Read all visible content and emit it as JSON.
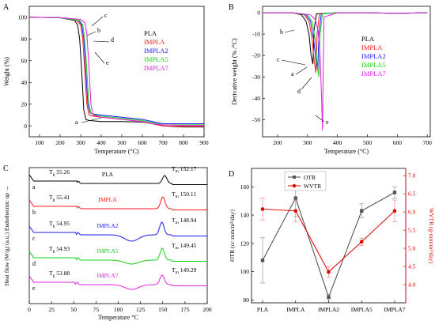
{
  "colors": {
    "PLA": "#000000",
    "IMPLA": "#ff1a1a",
    "IMPLA2": "#1a1aff",
    "IMPLA5": "#1ad01a",
    "IMPLA7": "#e020e0",
    "axis": "#000000",
    "wvtr": "#e00000",
    "otr": "#444444"
  },
  "chart_data": [
    {
      "panel": "A",
      "type": "line",
      "xlabel": "Temperature (°C)",
      "ylabel": "Weight (%)",
      "xlim": [
        50,
        900
      ],
      "ylim": [
        -10,
        110
      ],
      "xticks": [
        100,
        200,
        300,
        400,
        500,
        600,
        700,
        800,
        900
      ],
      "yticks": [
        0,
        20,
        40,
        60,
        80,
        100
      ],
      "legend": [
        "PLA",
        "IMPLA",
        "IMPLA2",
        "IMPLA5",
        "IMPLA7"
      ],
      "legend_position": "center-right",
      "annotations": [
        "a",
        "b",
        "c",
        "d",
        "e"
      ],
      "series": [
        {
          "name": "PLA",
          "x": [
            50,
            200,
            270,
            285,
            295,
            305,
            315,
            325,
            340,
            400,
            500,
            600,
            650,
            700,
            800,
            900
          ],
          "y": [
            100,
            99.5,
            97,
            93,
            80,
            50,
            15,
            6,
            5,
            4,
            4,
            3.5,
            2,
            0,
            -1,
            -1
          ]
        },
        {
          "name": "IMPLA",
          "x": [
            50,
            200,
            280,
            300,
            310,
            320,
            330,
            340,
            360,
            400,
            500,
            600,
            650,
            700,
            800,
            900
          ],
          "y": [
            100,
            99.5,
            97,
            93,
            80,
            50,
            20,
            10,
            9,
            8,
            6,
            4,
            2,
            0,
            -0.5,
            -0.5
          ]
        },
        {
          "name": "IMPLA2",
          "x": [
            50,
            200,
            290,
            305,
            315,
            325,
            335,
            345,
            360,
            400,
            500,
            600,
            650,
            700,
            800,
            900
          ],
          "y": [
            100,
            99.5,
            97,
            93,
            80,
            50,
            20,
            12,
            11,
            10,
            8,
            6,
            4,
            2,
            2,
            2
          ]
        },
        {
          "name": "IMPLA5",
          "x": [
            50,
            200,
            295,
            310,
            320,
            330,
            340,
            350,
            370,
            400,
            500,
            600,
            650,
            700,
            800,
            900
          ],
          "y": [
            100,
            99.5,
            97,
            93,
            80,
            50,
            20,
            12,
            10,
            9,
            7,
            5,
            3,
            1,
            1,
            1
          ]
        },
        {
          "name": "IMPLA7",
          "x": [
            50,
            200,
            300,
            320,
            330,
            340,
            350,
            360,
            380,
            400,
            500,
            600,
            650,
            700,
            800,
            900
          ],
          "y": [
            100,
            99.5,
            98,
            95,
            85,
            55,
            20,
            10,
            9,
            8,
            6,
            4,
            2,
            1,
            0.5,
            0.5
          ]
        }
      ]
    },
    {
      "panel": "B",
      "type": "line",
      "xlabel": "Temperature (°C)",
      "ylabel": "Derivative weight (% /°C)",
      "xlim": [
        150,
        710
      ],
      "ylim": [
        -58,
        3
      ],
      "xticks": [
        200,
        300,
        400,
        500,
        600,
        700
      ],
      "yticks": [
        0,
        -10,
        -20,
        -30,
        -40,
        -50
      ],
      "legend": [
        "PLA",
        "IMPLA",
        "IMPLA2",
        "IMPLA5",
        "IMPLA7"
      ],
      "legend_position": "center-right",
      "annotations": [
        "a",
        "b",
        "c",
        "d",
        "e"
      ],
      "series": [
        {
          "name": "PLA",
          "x": [
            150,
            250,
            280,
            295,
            305,
            312,
            318,
            322,
            330,
            400,
            500,
            600,
            700
          ],
          "y": [
            0,
            0,
            -1,
            -4,
            -10,
            -20,
            -24,
            -8,
            -0.5,
            0,
            0,
            -0.3,
            0
          ]
        },
        {
          "name": "IMPLA",
          "x": [
            150,
            250,
            290,
            305,
            315,
            322,
            328,
            332,
            340,
            400,
            500,
            600,
            700
          ],
          "y": [
            0,
            0,
            -1,
            -4,
            -12,
            -22,
            -28,
            -10,
            -0.5,
            0,
            0,
            -0.3,
            0
          ]
        },
        {
          "name": "IMPLA2",
          "x": [
            150,
            250,
            295,
            310,
            320,
            328,
            334,
            338,
            346,
            400,
            500,
            600,
            700
          ],
          "y": [
            0,
            0,
            -1,
            -4,
            -12,
            -22,
            -27,
            -10,
            -0.5,
            0,
            0,
            -0.3,
            0
          ]
        },
        {
          "name": "IMPLA5",
          "x": [
            150,
            250,
            300,
            315,
            325,
            332,
            338,
            342,
            350,
            400,
            500,
            600,
            700
          ],
          "y": [
            0,
            0,
            -1,
            -4,
            -12,
            -24,
            -30,
            -10,
            -0.5,
            0,
            0,
            -0.3,
            0
          ]
        },
        {
          "name": "IMPLA7",
          "x": [
            150,
            250,
            310,
            325,
            335,
            342,
            347,
            350,
            355,
            400,
            500,
            600,
            700
          ],
          "y": [
            0,
            0,
            -1,
            -3,
            -8,
            -20,
            -40,
            -55,
            -2,
            0,
            0,
            -0.3,
            0
          ]
        }
      ]
    },
    {
      "panel": "C",
      "type": "line",
      "xlabel": "Temperature °C",
      "ylabel": "Heat flow (W/g) (a.u.) Endothermic up →",
      "xlim": [
        0,
        200
      ],
      "xticks": [
        0,
        25,
        50,
        75,
        100,
        125,
        150,
        175,
        200
      ],
      "legend": [
        "PLA",
        "IMPLA",
        "IMPLA2",
        "IMPLA5",
        "IMPLA7"
      ],
      "annotations": [
        {
          "curve": "a",
          "tg_prefix": "T",
          "tg_sub": "g",
          "tg_value": "55.26",
          "tm_prefix": "T",
          "tm_sub": "m",
          "tm_value": "152.17"
        },
        {
          "curve": "b",
          "tg_prefix": "T",
          "tg_sub": "g",
          "tg_value": "55.41",
          "tm_prefix": "T",
          "tm_sub": "m",
          "tm_value": "150.11"
        },
        {
          "curve": "c",
          "tg_prefix": "T",
          "tg_sub": "g",
          "tg_value": "54.95",
          "tm_prefix": "T",
          "tm_sub": "m",
          "tm_value": "148.94"
        },
        {
          "curve": "d",
          "tg_prefix": "T",
          "tg_sub": "g",
          "tg_value": "54.93",
          "tm_prefix": "T",
          "tm_sub": "m",
          "tm_value": "149.45"
        },
        {
          "curve": "e",
          "tg_prefix": "T",
          "tg_sub": "g",
          "tg_value": "53.88",
          "tm_prefix": "T",
          "tm_sub": "m",
          "tm_value": "149.29"
        }
      ],
      "series": [
        {
          "name": "PLA",
          "tg": 55.26,
          "tm": 152.17,
          "cc_depth": 0,
          "tm_peak": 10
        },
        {
          "name": "IMPLA",
          "tg": 55.41,
          "tm": 150.11,
          "cc_depth": 0,
          "tm_peak": 15
        },
        {
          "name": "IMPLA2",
          "tg": 54.95,
          "tm": 148.94,
          "cc_depth": 8,
          "tm_peak": 16
        },
        {
          "name": "IMPLA5",
          "tg": 54.93,
          "tm": 149.45,
          "cc_depth": 5,
          "tm_peak": 15
        },
        {
          "name": "IMPLA7",
          "tg": 53.88,
          "tm": 149.29,
          "cc_depth": 6,
          "tm_peak": 12
        }
      ]
    },
    {
      "panel": "D",
      "type": "line",
      "categories": [
        "PLA",
        "IMPLA",
        "IMPLA2",
        "IMPLA5",
        "IMPLA7"
      ],
      "ylabel_left": "OTR (cc·mm/m²/day)",
      "ylabel_right": "WVTR (g·mm/m²/day)",
      "ylim_left": [
        78,
        173
      ],
      "ylim_right": [
        3.5,
        7.2
      ],
      "yticks_left": [
        80,
        100,
        120,
        140,
        160
      ],
      "yticks_right": [
        4.0,
        4.5,
        5.0,
        5.5,
        6.0,
        6.5,
        7.0
      ],
      "legend": [
        "OTR",
        "WVTR"
      ],
      "legend_position": "top-left",
      "series": [
        {
          "name": "OTR",
          "axis": "left",
          "values": [
            108,
            152,
            82,
            143,
            156
          ],
          "errors": [
            16,
            13,
            2,
            5,
            4
          ]
        },
        {
          "name": "WVTR",
          "axis": "right",
          "values": [
            6.08,
            6.03,
            4.35,
            5.18,
            6.03
          ],
          "errors": [
            0.3,
            0.3,
            0.15,
            0.1,
            0.3
          ]
        }
      ]
    }
  ]
}
